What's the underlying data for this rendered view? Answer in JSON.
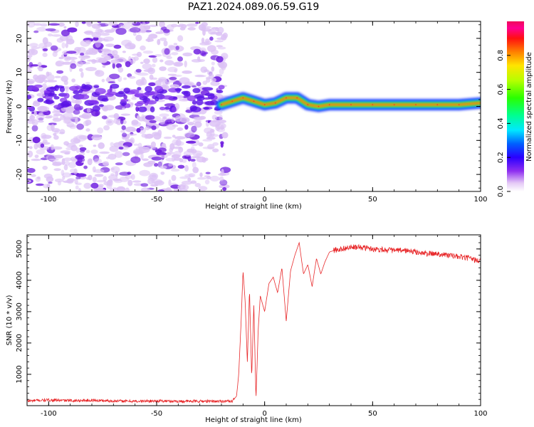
{
  "title": "PAZ1.2024.089.06.59.G19",
  "colors": {
    "snr_line": "#e8282a",
    "ridge_core": "#ff2a2a",
    "ridge_mid": "#26e62a",
    "ridge_outer": "#1a30ff",
    "noise_light": "#dcc2f5",
    "noise_dark": "#6f1ee0"
  },
  "chart_data": [
    {
      "type": "heatmap",
      "xlabel": "Height of straight line (km)",
      "ylabel": "Frequency (Hz)",
      "xlim": [
        -110,
        100
      ],
      "ylim": [
        -25,
        25
      ],
      "xticks": [
        -100,
        -50,
        0,
        50,
        100
      ],
      "yticks": [
        -20,
        -10,
        0,
        10,
        20
      ],
      "grid": false,
      "colorbar": {
        "label": "Normalized spectral amplitude",
        "range": [
          0,
          1
        ],
        "ticks": [
          0.0,
          0.2,
          0.4,
          0.6,
          0.8
        ],
        "colormap": "gist_ncar-like (white-violet-blue-cyan-green-yellow-red-magenta)"
      },
      "description_of_content": "noisy broadband speckle below ~-18 km, narrow signal ridge near 0-3 Hz above",
      "ridge": {
        "x": [
          -20,
          -15,
          -10,
          -5,
          0,
          5,
          10,
          15,
          20,
          25,
          30,
          40,
          50,
          60,
          70,
          80,
          90,
          100
        ],
        "frequency_hz": [
          0.5,
          1.5,
          2.5,
          1.5,
          0.5,
          1.0,
          2.5,
          2.5,
          0.5,
          0.0,
          0.5,
          0.5,
          0.5,
          0.5,
          0.5,
          0.5,
          0.5,
          1.0
        ]
      }
    },
    {
      "type": "line",
      "xlabel": "Height of straight line (km)",
      "ylabel": "SNR (10 * v/v)",
      "xlim": [
        -110,
        100
      ],
      "ylim": [
        0,
        5450
      ],
      "xticks": [
        -100,
        -50,
        0,
        50,
        100
      ],
      "yticks": [
        1000,
        2000,
        3000,
        4000,
        5000
      ],
      "grid": false,
      "series": [
        {
          "x": [
            -110,
            -100,
            -90,
            -80,
            -70,
            -60,
            -50,
            -40,
            -30,
            -20,
            -15,
            -13,
            -12,
            -11,
            -10,
            -9,
            -8,
            -7,
            -6,
            -5,
            -4,
            -3,
            -2,
            0,
            2,
            4,
            6,
            8,
            10,
            12,
            14,
            16,
            18,
            20,
            22,
            24,
            26,
            28,
            30,
            32,
            35,
            40,
            45,
            50,
            55,
            60,
            65,
            70,
            75,
            80,
            85,
            90,
            95,
            100
          ],
          "y": [
            150,
            180,
            160,
            170,
            150,
            140,
            150,
            140,
            140,
            140,
            150,
            300,
            1000,
            2500,
            4300,
            3300,
            1400,
            3700,
            900,
            3200,
            200,
            2400,
            3500,
            3000,
            3900,
            4100,
            3600,
            4400,
            2700,
            4300,
            4800,
            5200,
            4200,
            4500,
            3800,
            4700,
            4200,
            4600,
            4900,
            4950,
            5000,
            5050,
            5050,
            5000,
            4980,
            4950,
            4950,
            4900,
            4850,
            4850,
            4800,
            4750,
            4700,
            4600
          ]
        }
      ]
    }
  ]
}
